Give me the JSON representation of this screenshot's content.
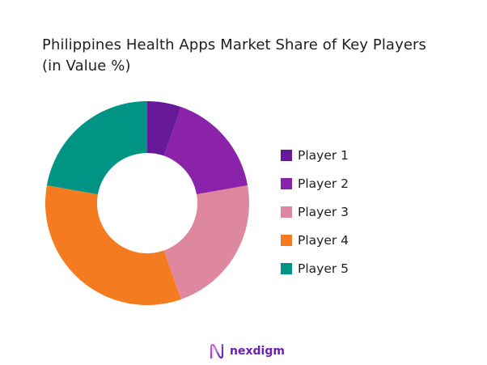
{
  "title_line1": "Philippines Health Apps Market Share of Key Players",
  "title_line2": "(in Value %)",
  "brand": {
    "name": "nexdigm",
    "icon": "nexdigm-logo-icon"
  },
  "chart_data": {
    "type": "pie",
    "variant": "donut",
    "title": "Philippines Health Apps Market Share of Key Players (in Value %)",
    "categories": [
      "Player 1",
      "Player 2",
      "Player 3",
      "Player 4",
      "Player 5"
    ],
    "values": [
      5.4,
      16.8,
      22.4,
      33.2,
      22.2
    ],
    "colors": [
      "#661a99",
      "#8b22aa",
      "#de88a0",
      "#f47b20",
      "#009485"
    ],
    "legend_position": "right",
    "start_angle": "12 o'clock",
    "direction": "clockwise"
  },
  "legend": [
    {
      "label": "Player 1",
      "color": "#661a99"
    },
    {
      "label": "Player 2",
      "color": "#8b22aa"
    },
    {
      "label": "Player 3",
      "color": "#de88a0"
    },
    {
      "label": "Player 4",
      "color": "#f47b20"
    },
    {
      "label": "Player 5",
      "color": "#009485"
    }
  ]
}
